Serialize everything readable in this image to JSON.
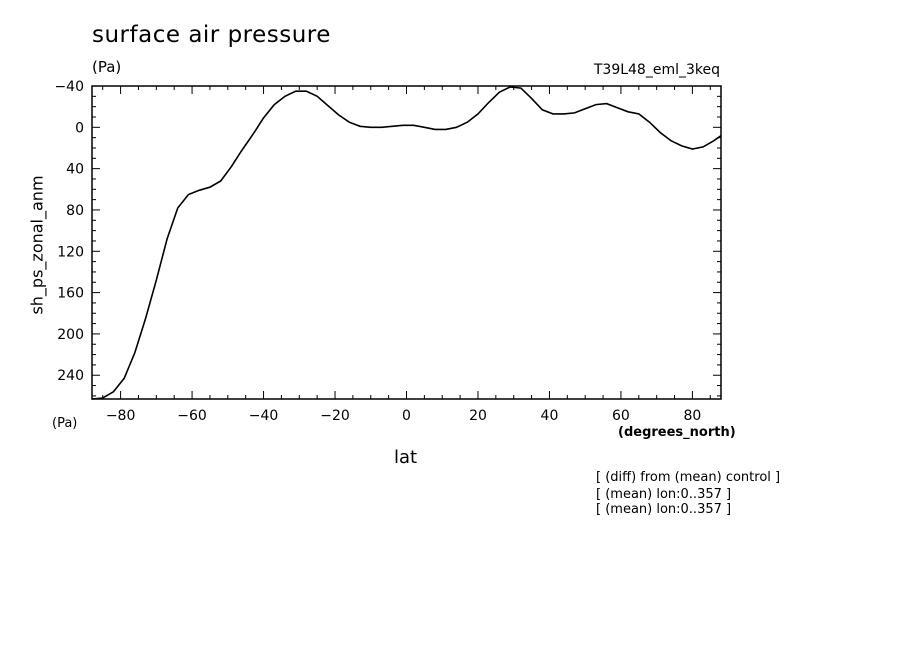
{
  "chart_data": {
    "type": "line",
    "title": "surface air pressure",
    "units_top": "(Pa)",
    "experiment": "T39L48_eml_3keq",
    "xlabel": "lat",
    "x_units": "(degrees_north)",
    "ylabel": "sh_ps_zonal_anm",
    "y_units": "(Pa)",
    "xlim": [
      -88,
      88
    ],
    "ylim": [
      263,
      -40
    ],
    "y_inverted": true,
    "x_ticks": [
      "-80",
      "-60",
      "-40",
      "-20",
      "0",
      "20",
      "40",
      "60",
      "80"
    ],
    "x_tick_values": [
      -80,
      -60,
      -40,
      -20,
      0,
      20,
      40,
      60,
      80
    ],
    "y_ticks": [
      "-40",
      "0",
      "40",
      "80",
      "120",
      "160",
      "200",
      "240"
    ],
    "y_tick_values": [
      -40,
      0,
      40,
      80,
      120,
      160,
      200,
      240
    ],
    "series": [
      {
        "x": [
          -88,
          -85,
          -82,
          -79,
          -76,
          -73,
          -70,
          -67,
          -64,
          -61,
          -58,
          -55,
          -52,
          -49,
          -46,
          -43,
          -40,
          -37,
          -34,
          -31,
          -28,
          -25,
          -22,
          -19,
          -16,
          -13,
          -10,
          -7,
          -4,
          -1,
          2,
          5,
          8,
          11,
          14,
          17,
          20,
          23,
          26,
          29,
          32,
          35,
          38,
          41,
          44,
          47,
          50,
          53,
          56,
          59,
          62,
          65,
          68,
          71,
          74,
          77,
          80,
          83,
          86,
          88
        ],
        "y": [
          263,
          262,
          256,
          243,
          218,
          185,
          148,
          108,
          78,
          65,
          61,
          58,
          52,
          38,
          22,
          7,
          -9,
          -22,
          -30,
          -35,
          -35,
          -30,
          -21,
          -12,
          -5,
          -1,
          0,
          0,
          -1,
          -2,
          -2,
          0,
          2,
          2,
          0,
          -5,
          -13,
          -24,
          -34,
          -39,
          -38,
          -28,
          -17,
          -13,
          -13,
          -14,
          -18,
          -22,
          -23,
          -19,
          -15,
          -13,
          -5,
          5,
          13,
          18,
          21,
          19,
          13,
          8
        ]
      }
    ],
    "annotations": [
      "[ (diff) from (mean) control ]",
      "[ (mean) lon:0..357 ]",
      "[ (mean) lon:0..357 ]"
    ],
    "grid": false,
    "legend": "none"
  }
}
